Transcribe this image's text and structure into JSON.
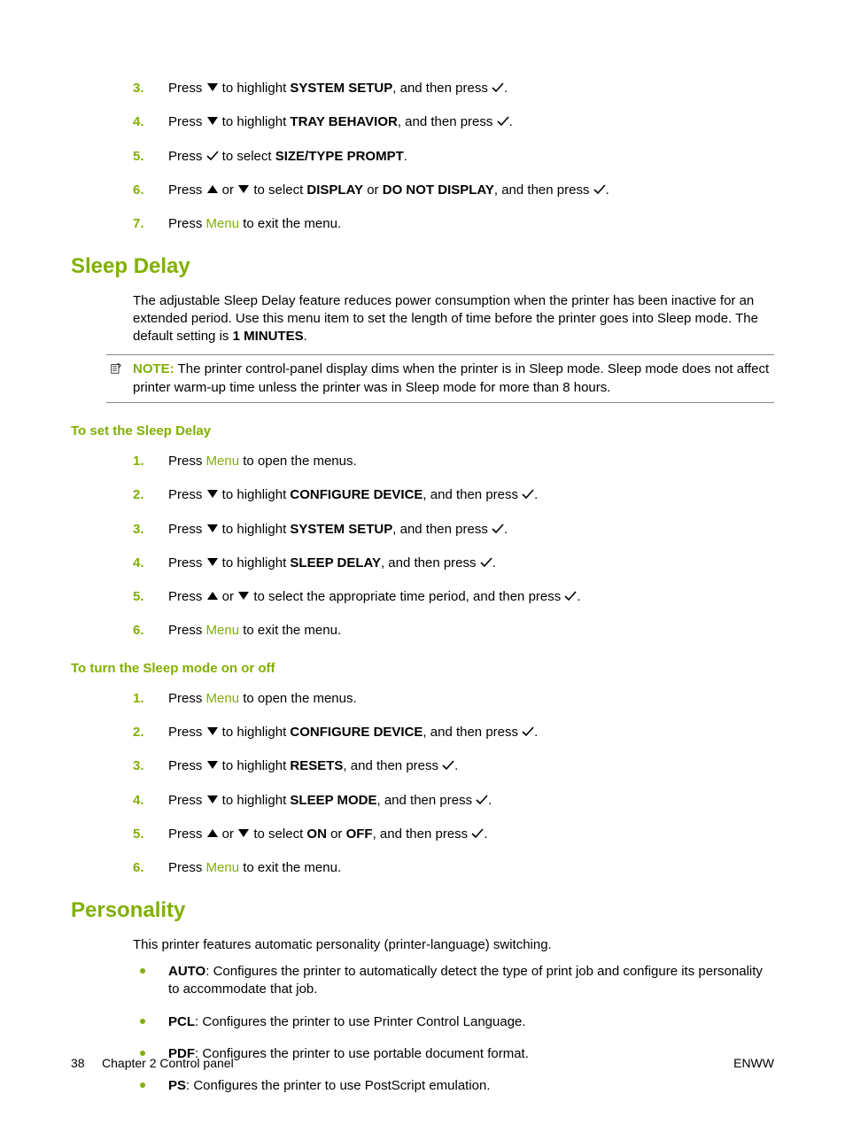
{
  "colors": {
    "accent": "#80b000",
    "text": "#000000",
    "rule": "#888888",
    "bg": "#ffffff"
  },
  "icons": {
    "down": "▼",
    "up": "▲",
    "check": "✓"
  },
  "kw": {
    "menu": "Menu"
  },
  "intro_steps": [
    {
      "n": "3.",
      "pre": "Press ",
      "icon1": "down",
      "mid": " to highlight ",
      "bold1": "SYSTEM SETUP",
      "post1": ", and then press ",
      "icon2": "check",
      "post2": "."
    },
    {
      "n": "4.",
      "pre": "Press ",
      "icon1": "down",
      "mid": " to highlight ",
      "bold1": "TRAY BEHAVIOR",
      "post1": ", and then press ",
      "icon2": "check",
      "post2": "."
    },
    {
      "n": "5.",
      "pre": "Press ",
      "icon1": "check",
      "mid": " to select ",
      "bold1": "SIZE/TYPE PROMPT",
      "post1": ".",
      "icon2": null,
      "post2": ""
    },
    {
      "n": "6.",
      "pre": "Press ",
      "icon1": "up",
      "or": " or ",
      "iconB": "down",
      "mid": " to select ",
      "bold1": "DISPLAY",
      "or2": " or ",
      "bold2": "DO NOT DISPLAY",
      "post1": ", and then press ",
      "icon2": "check",
      "post2": "."
    },
    {
      "n": "7.",
      "pre": "Press ",
      "menu": true,
      "post1": " to exit the menu."
    }
  ],
  "sleep": {
    "heading": "Sleep Delay",
    "para_pre": "The adjustable Sleep Delay feature reduces power consumption when the printer has been inactive for an extended period. Use this menu item to set the length of time before the printer goes into Sleep mode. The default setting is ",
    "para_bold": "1 MINUTES",
    "para_post": ".",
    "note_label": "NOTE:",
    "note_text": "  The printer control-panel display dims when the printer is in Sleep mode. Sleep mode does not affect printer warm-up time unless the printer was in Sleep mode for more than 8 hours.",
    "set_heading": "To set the Sleep Delay",
    "set_steps": [
      {
        "n": "1.",
        "pre": "Press ",
        "menu": true,
        "post1": " to open the menus."
      },
      {
        "n": "2.",
        "pre": "Press ",
        "icon1": "down",
        "mid": " to highlight ",
        "bold1": "CONFIGURE DEVICE",
        "post1": ", and then press ",
        "icon2": "check",
        "post2": "."
      },
      {
        "n": "3.",
        "pre": "Press ",
        "icon1": "down",
        "mid": " to highlight ",
        "bold1": "SYSTEM SETUP",
        "post1": ", and then press ",
        "icon2": "check",
        "post2": "."
      },
      {
        "n": "4.",
        "pre": "Press ",
        "icon1": "down",
        "mid": " to highlight ",
        "bold1": "SLEEP DELAY",
        "post1": ", and then press ",
        "icon2": "check",
        "post2": "."
      },
      {
        "n": "5.",
        "pre": "Press ",
        "icon1": "up",
        "or": " or ",
        "iconB": "down",
        "mid": " to select the appropriate time period, and then press ",
        "icon2": "check",
        "post2": "."
      },
      {
        "n": "6.",
        "pre": "Press ",
        "menu": true,
        "post1": " to exit the menu."
      }
    ],
    "toggle_heading": "To turn the Sleep mode on or off",
    "toggle_steps": [
      {
        "n": "1.",
        "pre": "Press ",
        "menu": true,
        "post1": " to open the menus."
      },
      {
        "n": "2.",
        "pre": "Press ",
        "icon1": "down",
        "mid": " to highlight ",
        "bold1": "CONFIGURE DEVICE",
        "post1": ", and then press ",
        "icon2": "check",
        "post2": "."
      },
      {
        "n": "3.",
        "pre": "Press ",
        "icon1": "down",
        "mid": " to highlight ",
        "bold1": "RESETS",
        "post1": ", and then press ",
        "icon2": "check",
        "post2": "."
      },
      {
        "n": "4.",
        "pre": "Press ",
        "icon1": "down",
        "mid": " to highlight ",
        "bold1": "SLEEP MODE",
        "post1": ", and then press ",
        "icon2": "check",
        "post2": "."
      },
      {
        "n": "5.",
        "pre": "Press ",
        "icon1": "up",
        "or": " or ",
        "iconB": "down",
        "mid": " to select ",
        "bold1": "ON",
        "or2": " or ",
        "bold2": "OFF",
        "post1": ", and then press ",
        "icon2": "check",
        "post2": "."
      },
      {
        "n": "6.",
        "pre": "Press ",
        "menu": true,
        "post1": " to exit the menu."
      }
    ]
  },
  "personality": {
    "heading": "Personality",
    "intro": "This printer features automatic personality (printer-language) switching.",
    "items": [
      {
        "bold": "AUTO",
        "text": ": Configures the printer to automatically detect the type of print job and configure its personality to accommodate that job."
      },
      {
        "bold": "PCL",
        "text": ": Configures the printer to use Printer Control Language."
      },
      {
        "bold": "PDF",
        "text": ": Configures the printer to use portable document format."
      },
      {
        "bold": "PS",
        "text": ": Configures the printer to use PostScript emulation."
      }
    ]
  },
  "footer": {
    "page": "38",
    "chapter": "Chapter 2   Control panel",
    "right": "ENWW"
  }
}
